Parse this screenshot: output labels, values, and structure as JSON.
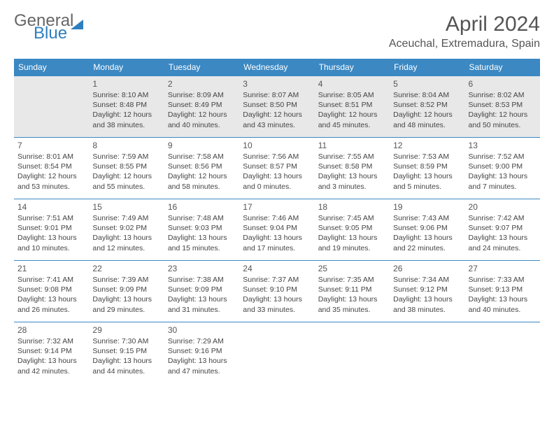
{
  "logo": {
    "word1": "General",
    "word2": "Blue"
  },
  "title": "April 2024",
  "location": "Aceuchal, Extremadura, Spain",
  "colors": {
    "header_bg": "#3b88c3",
    "header_text": "#ffffff",
    "shaded_cell": "#e8e8e8",
    "cell_border": "#3b88c3",
    "logo_gray": "#666666",
    "logo_blue": "#2e7fbf"
  },
  "day_headers": [
    "Sunday",
    "Monday",
    "Tuesday",
    "Wednesday",
    "Thursday",
    "Friday",
    "Saturday"
  ],
  "weeks": [
    [
      {
        "day": "",
        "shaded": true
      },
      {
        "day": "1",
        "shaded": true,
        "sunrise": "8:10 AM",
        "sunset": "8:48 PM",
        "daylight": "12 hours and 38 minutes."
      },
      {
        "day": "2",
        "shaded": true,
        "sunrise": "8:09 AM",
        "sunset": "8:49 PM",
        "daylight": "12 hours and 40 minutes."
      },
      {
        "day": "3",
        "shaded": true,
        "sunrise": "8:07 AM",
        "sunset": "8:50 PM",
        "daylight": "12 hours and 43 minutes."
      },
      {
        "day": "4",
        "shaded": true,
        "sunrise": "8:05 AM",
        "sunset": "8:51 PM",
        "daylight": "12 hours and 45 minutes."
      },
      {
        "day": "5",
        "shaded": true,
        "sunrise": "8:04 AM",
        "sunset": "8:52 PM",
        "daylight": "12 hours and 48 minutes."
      },
      {
        "day": "6",
        "shaded": true,
        "sunrise": "8:02 AM",
        "sunset": "8:53 PM",
        "daylight": "12 hours and 50 minutes."
      }
    ],
    [
      {
        "day": "7",
        "sunrise": "8:01 AM",
        "sunset": "8:54 PM",
        "daylight": "12 hours and 53 minutes."
      },
      {
        "day": "8",
        "sunrise": "7:59 AM",
        "sunset": "8:55 PM",
        "daylight": "12 hours and 55 minutes."
      },
      {
        "day": "9",
        "sunrise": "7:58 AM",
        "sunset": "8:56 PM",
        "daylight": "12 hours and 58 minutes."
      },
      {
        "day": "10",
        "sunrise": "7:56 AM",
        "sunset": "8:57 PM",
        "daylight": "13 hours and 0 minutes."
      },
      {
        "day": "11",
        "sunrise": "7:55 AM",
        "sunset": "8:58 PM",
        "daylight": "13 hours and 3 minutes."
      },
      {
        "day": "12",
        "sunrise": "7:53 AM",
        "sunset": "8:59 PM",
        "daylight": "13 hours and 5 minutes."
      },
      {
        "day": "13",
        "sunrise": "7:52 AM",
        "sunset": "9:00 PM",
        "daylight": "13 hours and 7 minutes."
      }
    ],
    [
      {
        "day": "14",
        "sunrise": "7:51 AM",
        "sunset": "9:01 PM",
        "daylight": "13 hours and 10 minutes."
      },
      {
        "day": "15",
        "sunrise": "7:49 AM",
        "sunset": "9:02 PM",
        "daylight": "13 hours and 12 minutes."
      },
      {
        "day": "16",
        "sunrise": "7:48 AM",
        "sunset": "9:03 PM",
        "daylight": "13 hours and 15 minutes."
      },
      {
        "day": "17",
        "sunrise": "7:46 AM",
        "sunset": "9:04 PM",
        "daylight": "13 hours and 17 minutes."
      },
      {
        "day": "18",
        "sunrise": "7:45 AM",
        "sunset": "9:05 PM",
        "daylight": "13 hours and 19 minutes."
      },
      {
        "day": "19",
        "sunrise": "7:43 AM",
        "sunset": "9:06 PM",
        "daylight": "13 hours and 22 minutes."
      },
      {
        "day": "20",
        "sunrise": "7:42 AM",
        "sunset": "9:07 PM",
        "daylight": "13 hours and 24 minutes."
      }
    ],
    [
      {
        "day": "21",
        "sunrise": "7:41 AM",
        "sunset": "9:08 PM",
        "daylight": "13 hours and 26 minutes."
      },
      {
        "day": "22",
        "sunrise": "7:39 AM",
        "sunset": "9:09 PM",
        "daylight": "13 hours and 29 minutes."
      },
      {
        "day": "23",
        "sunrise": "7:38 AM",
        "sunset": "9:09 PM",
        "daylight": "13 hours and 31 minutes."
      },
      {
        "day": "24",
        "sunrise": "7:37 AM",
        "sunset": "9:10 PM",
        "daylight": "13 hours and 33 minutes."
      },
      {
        "day": "25",
        "sunrise": "7:35 AM",
        "sunset": "9:11 PM",
        "daylight": "13 hours and 35 minutes."
      },
      {
        "day": "26",
        "sunrise": "7:34 AM",
        "sunset": "9:12 PM",
        "daylight": "13 hours and 38 minutes."
      },
      {
        "day": "27",
        "sunrise": "7:33 AM",
        "sunset": "9:13 PM",
        "daylight": "13 hours and 40 minutes."
      }
    ],
    [
      {
        "day": "28",
        "sunrise": "7:32 AM",
        "sunset": "9:14 PM",
        "daylight": "13 hours and 42 minutes."
      },
      {
        "day": "29",
        "sunrise": "7:30 AM",
        "sunset": "9:15 PM",
        "daylight": "13 hours and 44 minutes."
      },
      {
        "day": "30",
        "sunrise": "7:29 AM",
        "sunset": "9:16 PM",
        "daylight": "13 hours and 47 minutes."
      },
      {
        "day": ""
      },
      {
        "day": ""
      },
      {
        "day": ""
      },
      {
        "day": ""
      }
    ]
  ],
  "labels": {
    "sunrise": "Sunrise:",
    "sunset": "Sunset:",
    "daylight": "Daylight:"
  }
}
